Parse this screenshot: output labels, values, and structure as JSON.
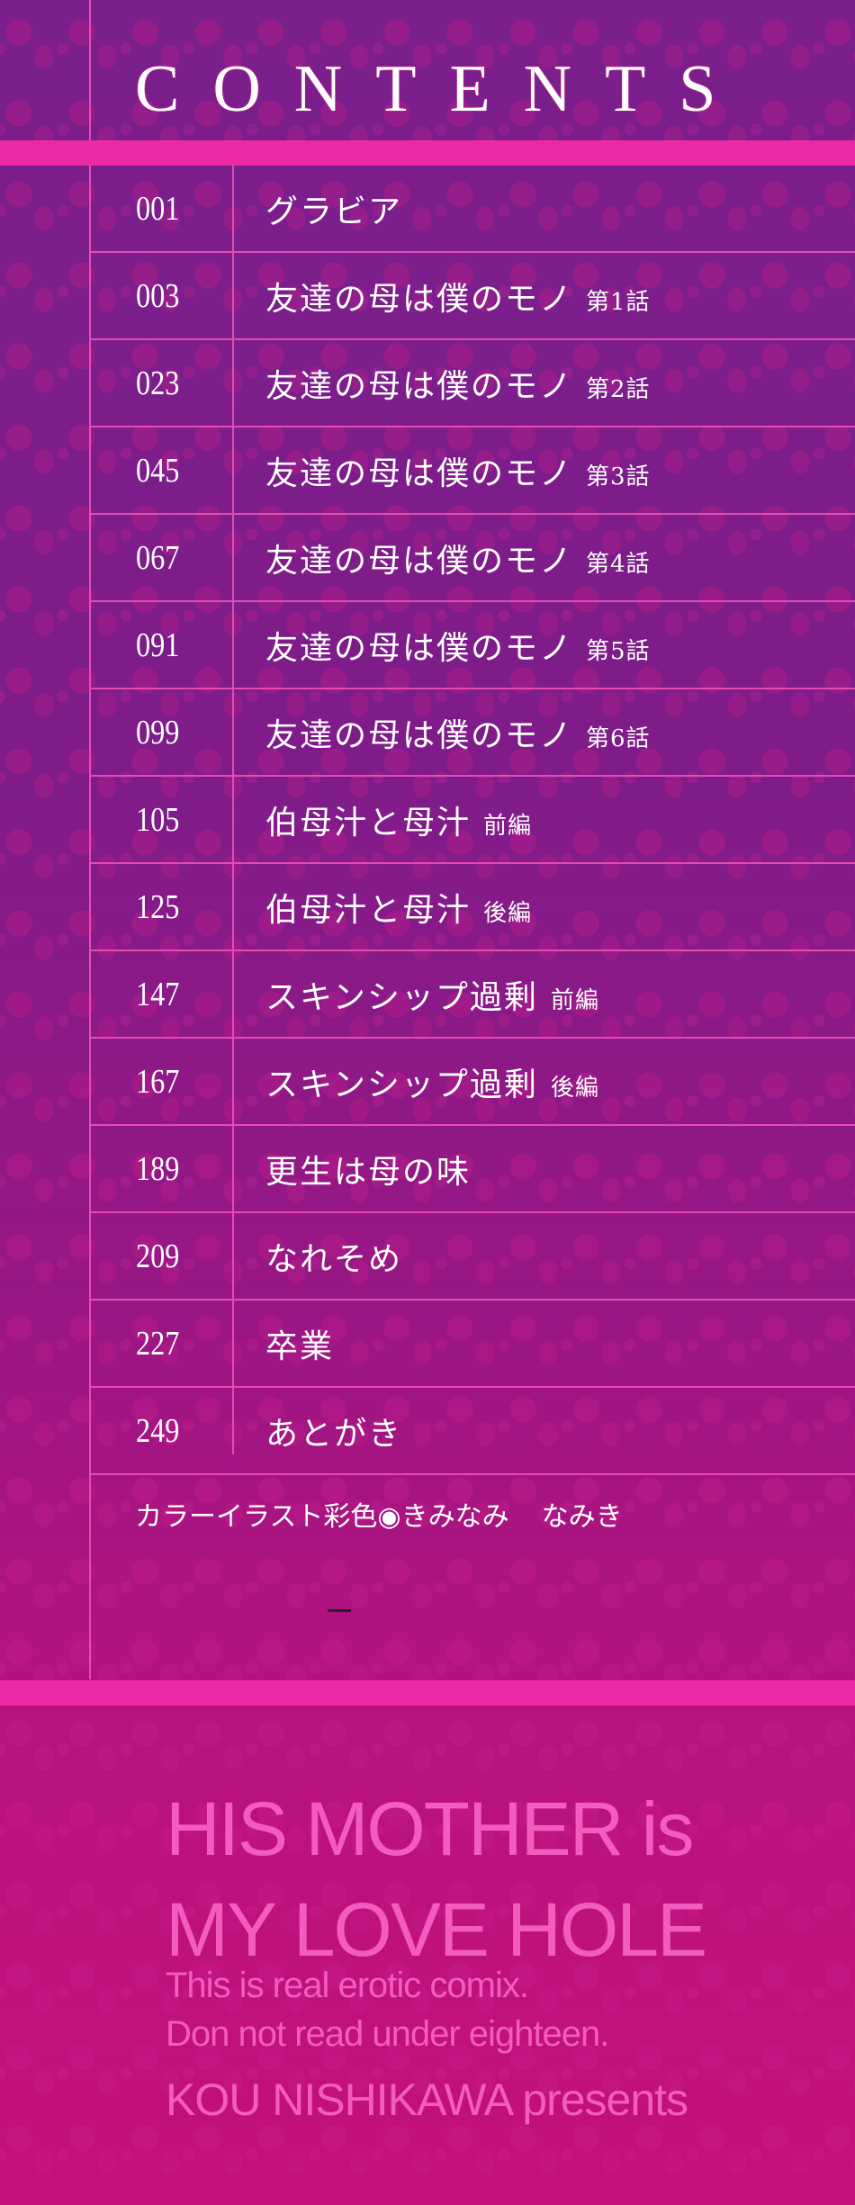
{
  "header": {
    "title": "CONTENTS"
  },
  "colors": {
    "background_top": "#7a1f8c",
    "background_bottom": "#c4107a",
    "band": "#ec2aa6",
    "rule": "#e64bb4",
    "english_text": "#f25cbf"
  },
  "contents": [
    {
      "page": "001",
      "title": "グラビア",
      "suffix": ""
    },
    {
      "page": "003",
      "title": "友達の母は僕のモノ",
      "suffix": "第1話"
    },
    {
      "page": "023",
      "title": "友達の母は僕のモノ",
      "suffix": "第2話"
    },
    {
      "page": "045",
      "title": "友達の母は僕のモノ",
      "suffix": "第3話"
    },
    {
      "page": "067",
      "title": "友達の母は僕のモノ",
      "suffix": "第4話"
    },
    {
      "page": "091",
      "title": "友達の母は僕のモノ",
      "suffix": "第5話"
    },
    {
      "page": "099",
      "title": "友達の母は僕のモノ",
      "suffix": "第6話"
    },
    {
      "page": "105",
      "title": "伯母汁と母汁",
      "suffix": "前編"
    },
    {
      "page": "125",
      "title": "伯母汁と母汁",
      "suffix": "後編"
    },
    {
      "page": "147",
      "title": "スキンシップ過剰",
      "suffix": "前編"
    },
    {
      "page": "167",
      "title": "スキンシップ過剰",
      "suffix": "後編"
    },
    {
      "page": "189",
      "title": "更生は母の味",
      "suffix": ""
    },
    {
      "page": "209",
      "title": "なれそめ",
      "suffix": ""
    },
    {
      "page": "227",
      "title": "卒業",
      "suffix": ""
    },
    {
      "page": "249",
      "title": "あとがき",
      "suffix": ""
    }
  ],
  "credit": {
    "label": "カラーイラスト彩色◉きみなみ",
    "name2": "なみき"
  },
  "footer": {
    "title_line1": "HIS MOTHER is",
    "title_line2": "MY LOVE HOLE",
    "notice_line1": "This is real erotic comix.",
    "notice_line2": "Don not read under eighteen.",
    "presents": "KOU NISHIKAWA presents"
  }
}
